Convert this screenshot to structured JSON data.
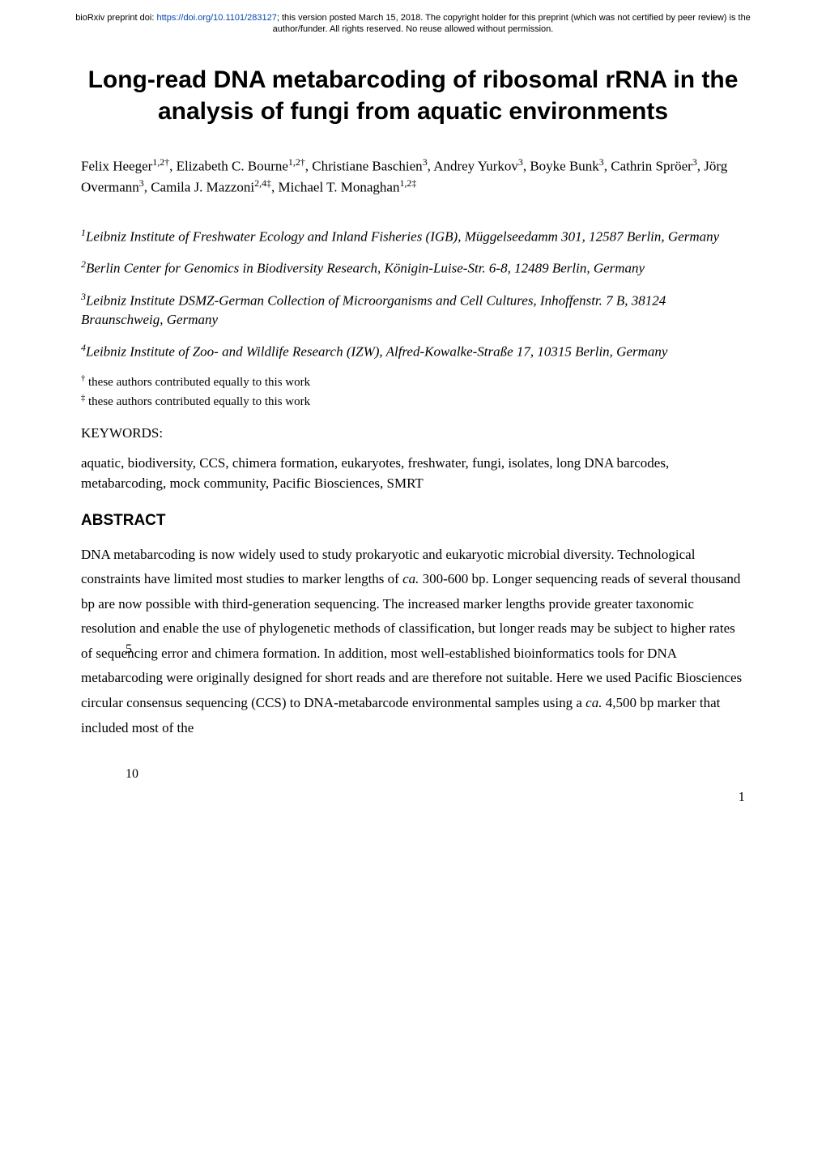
{
  "preprint": {
    "prefix": "bioRxiv preprint doi: ",
    "doi_url": "https://doi.org/10.1101/283127",
    "suffix": "; this version posted March 15, 2018. The copyright holder for this preprint (which was not certified by peer review) is the author/funder. All rights reserved. No reuse allowed without permission."
  },
  "title": "Long-read DNA metabarcoding of ribosomal rRNA in the analysis of fungi from aquatic environments",
  "authors_html": "Felix Heeger<sup>1,2†</sup>, Elizabeth C. Bourne<sup>1,2†</sup>, Christiane Baschien<sup>3</sup>, Andrey Yurkov<sup>3</sup>, Boyke Bunk<sup>3</sup>, Cathrin Spröer<sup>3</sup>, Jörg Overmann<sup>3</sup>, Camila J. Mazzoni<sup>2,4‡</sup>, Michael T. Monaghan<sup>1,2‡</sup>",
  "affiliations": [
    {
      "sup": "1",
      "text": "Leibniz Institute of Freshwater Ecology and Inland Fisheries (IGB), Müggelseedamm 301, 12587 Berlin, Germany"
    },
    {
      "sup": "2",
      "text": "Berlin Center for Genomics in Biodiversity Research, Königin-Luise-Str. 6-8, 12489 Berlin, Germany"
    },
    {
      "sup": "3",
      "text": "Leibniz Institute DSMZ-German Collection of Microorganisms and Cell Cultures, Inhoffenstr. 7 B, 38124 Braunschweig, Germany"
    },
    {
      "sup": "4",
      "text": "Leibniz Institute of Zoo- and Wildlife Research (IZW), Alfred-Kowalke-Straße 17, 10315 Berlin, Germany"
    }
  ],
  "contribs": [
    {
      "mark": "†",
      "text": " these authors contributed equally to this work"
    },
    {
      "mark": "‡",
      "text": " these authors contributed equally to this work"
    }
  ],
  "keywords": {
    "label": "KEYWORDS:",
    "text": "aquatic, biodiversity, CCS, chimera formation, eukaryotes, freshwater, fungi, isolates, long DNA barcodes, metabarcoding, mock community, Pacific Biosciences, SMRT"
  },
  "abstract": {
    "label": "ABSTRACT",
    "line_numbers": [
      "5",
      "10"
    ],
    "text_html": "DNA metabarcoding is now widely used to study prokaryotic and eukaryotic microbial diversity. Technological constraints have limited most studies to marker lengths of <span class=\"ital\">ca.</span> 300-600 bp. Longer sequencing reads of several thousand bp are now possible with third-generation sequencing. The increased marker lengths provide greater taxonomic resolution and enable the use of phylogenetic methods of classification, but longer reads may be subject to higher rates of sequencing error and chimera formation. In addition, most well-established bioinformatics tools for DNA metabarcoding were originally designed for short reads and are therefore not suitable. Here we used Pacific Biosciences circular consensus sequencing (CCS) to DNA-metabarcode environmental samples using a <span class=\"ital\">ca.</span> 4,500 bp marker that included most of the"
  },
  "page_number": "1"
}
